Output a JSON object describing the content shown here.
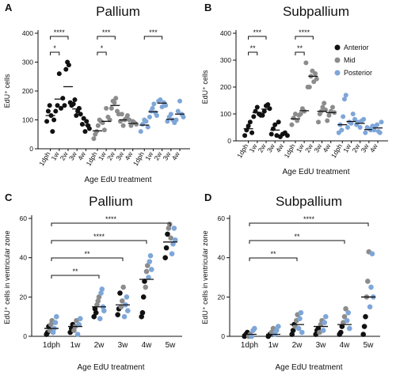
{
  "colors": {
    "anterior": "#111111",
    "mid": "#8c8c8c",
    "posterior": "#7ea6d8",
    "mean_line": "#111111"
  },
  "chart_data": [
    {
      "panel": "A",
      "type": "scatter",
      "title": "Pallium",
      "xlabel": "Age EdU treatment",
      "ylabel": "EdU⁺ cells",
      "ylim": [
        0,
        400
      ],
      "yticks": [
        "0",
        "100",
        "200",
        "300",
        "400"
      ],
      "grouping": "region",
      "groups": [
        {
          "series": "Anterior",
          "categories": [
            "1dph",
            "1w",
            "2w",
            "3w",
            "4w"
          ],
          "points": [
            [
              95,
              130,
              150,
              115,
              60,
              100
            ],
            [
              130,
              150,
              260,
              140,
              175
            ],
            [
              150,
              275,
              300,
              290,
              160,
              150
            ],
            [
              155,
              170,
              115,
              130,
              140,
              120
            ],
            [
              85,
              105,
              60,
              95,
              80,
              70
            ]
          ],
          "means": [
            115,
            172,
            215,
            138,
            82
          ]
        },
        {
          "series": "Mid",
          "categories": [
            "1dph",
            "1w",
            "2w",
            "3w",
            "4w"
          ],
          "points": [
            [
              35,
              50,
              60,
              80,
              100,
              95
            ],
            [
              90,
              65,
              140,
              110,
              100
            ],
            [
              140,
              165,
              160,
              175,
              130,
              120
            ],
            [
              95,
              120,
              80,
              100,
              105,
              115
            ],
            [
              100,
              80,
              95,
              90,
              85
            ]
          ],
          "means": [
            62,
            95,
            150,
            100,
            88
          ]
        },
        {
          "series": "Posterior",
          "categories": [
            "1dph",
            "1w",
            "2w",
            "3w",
            "4w"
          ],
          "points": [
            [
              60,
              85,
              100,
              95,
              75
            ],
            [
              110,
              130,
              140,
              155,
              125,
              115
            ],
            [
              165,
              170,
              145,
              160,
              150
            ],
            [
              95,
              110,
              120,
              100,
              90
            ],
            [
              100,
              130,
              165,
              120,
              110
            ]
          ],
          "means": [
            82,
            128,
            158,
            102,
            120
          ]
        }
      ],
      "significance": [
        {
          "from": "1dph",
          "to": "2w",
          "series": "Anterior",
          "label": "****"
        },
        {
          "from": "1dph",
          "to": "1w",
          "series": "Anterior",
          "label": "*"
        },
        {
          "from": "1dph",
          "to": "2w",
          "series": "Mid",
          "label": "***"
        },
        {
          "from": "1dph",
          "to": "1w",
          "series": "Mid",
          "label": "*"
        },
        {
          "from": "1dph",
          "to": "2w",
          "series": "Posterior",
          "label": "***"
        }
      ]
    },
    {
      "panel": "B",
      "type": "scatter",
      "title": "Subpallium",
      "xlabel": "Age EdU treatment",
      "ylabel": "EdU⁺ cells",
      "ylim": [
        0,
        400
      ],
      "yticks": [
        "0",
        "100",
        "200",
        "300",
        "400"
      ],
      "grouping": "region",
      "legend": [
        "Anterior",
        "Mid",
        "Posterior"
      ],
      "legend_position": "top-right",
      "groups": [
        {
          "series": "Anterior",
          "categories": [
            "1dph",
            "1w",
            "2w",
            "3w",
            "4w"
          ],
          "points": [
            [
              20,
              40,
              55,
              70,
              30
            ],
            [
              90,
              110,
              125,
              100,
              95
            ],
            [
              95,
              110,
              130,
              135,
              120
            ],
            [
              25,
              45,
              60,
              20,
              70
            ],
            [
              15,
              25,
              30,
              20
            ]
          ],
          "means": [
            45,
            105,
            118,
            40,
            22
          ]
        },
        {
          "series": "Mid",
          "categories": [
            "1dph",
            "1w",
            "2w",
            "3w",
            "4w"
          ],
          "points": [
            [
              60,
              85,
              100,
              75,
              95
            ],
            [
              100,
              120,
              110,
              290,
              200
            ],
            [
              200,
              240,
              260,
              220,
              250,
              230
            ],
            [
              70,
              100,
              110,
              125,
              140,
              115
            ],
            [
              75,
              95,
              110,
              125,
              105
            ]
          ],
          "means": [
            82,
            112,
            240,
            110,
            105
          ]
        },
        {
          "series": "Posterior",
          "categories": [
            "1dph",
            "1w",
            "2w",
            "3w",
            "4w"
          ],
          "points": [
            [
              30,
              60,
              40,
              90,
              155,
              170
            ],
            [
              50,
              70,
              65,
              100,
              80
            ],
            [
              60,
              70,
              50,
              75,
              80
            ],
            [
              30,
              50,
              45,
              40,
              55
            ],
            [
              40,
              55,
              60,
              35,
              30,
              70
            ]
          ],
          "means": [
            60,
            72,
            65,
            42,
            48
          ]
        }
      ],
      "significance": [
        {
          "from": "1dph",
          "to": "2w",
          "series": "Anterior",
          "label": "***"
        },
        {
          "from": "1dph",
          "to": "1w",
          "series": "Anterior",
          "label": "**"
        },
        {
          "from": "1dph",
          "to": "2w",
          "series": "Mid",
          "label": "****"
        },
        {
          "from": "1dph",
          "to": "1w",
          "series": "Mid",
          "label": "**"
        }
      ]
    },
    {
      "panel": "C",
      "type": "scatter",
      "title": "Pallium",
      "xlabel": "Age EdU treatment",
      "ylabel": "EdU⁺ cells in ventricular zone",
      "ylim": [
        0,
        60
      ],
      "yticks": [
        "0",
        "20",
        "40",
        "60"
      ],
      "grouping": "age",
      "categories": [
        "1dph",
        "1w",
        "2w",
        "3w",
        "4w",
        "5w"
      ],
      "points": [
        [
          [
            1,
            "a"
          ],
          [
            2,
            "a"
          ],
          [
            5,
            "a"
          ],
          [
            3,
            "m"
          ],
          [
            6,
            "m"
          ],
          [
            8,
            "m"
          ],
          [
            2,
            "p"
          ],
          [
            4,
            "p"
          ],
          [
            7,
            "p"
          ],
          [
            10,
            "p"
          ]
        ],
        [
          [
            2,
            "a"
          ],
          [
            4,
            "a"
          ],
          [
            6,
            "a"
          ],
          [
            3,
            "m"
          ],
          [
            5,
            "m"
          ],
          [
            8,
            "m"
          ],
          [
            1,
            "p"
          ],
          [
            6,
            "p"
          ],
          [
            9,
            "p"
          ]
        ],
        [
          [
            10,
            "a"
          ],
          [
            14,
            "a"
          ],
          [
            12,
            "a"
          ],
          [
            16,
            "m"
          ],
          [
            18,
            "m"
          ],
          [
            20,
            "m"
          ],
          [
            9,
            "p"
          ],
          [
            22,
            "p"
          ],
          [
            24,
            "p"
          ],
          [
            15,
            "p"
          ],
          [
            13,
            "p"
          ]
        ],
        [
          [
            11,
            "a"
          ],
          [
            14,
            "a"
          ],
          [
            22,
            "a"
          ],
          [
            15,
            "m"
          ],
          [
            18,
            "m"
          ],
          [
            25,
            "m"
          ],
          [
            10,
            "p"
          ],
          [
            16,
            "p"
          ],
          [
            20,
            "p"
          ],
          [
            13,
            "p"
          ]
        ],
        [
          [
            10,
            "a"
          ],
          [
            12,
            "a"
          ],
          [
            20,
            "a"
          ],
          [
            28,
            "a"
          ],
          [
            25,
            "m"
          ],
          [
            33,
            "m"
          ],
          [
            36,
            "m"
          ],
          [
            30,
            "p"
          ],
          [
            38,
            "p"
          ],
          [
            41,
            "p"
          ],
          [
            34,
            "p"
          ]
        ],
        [
          [
            40,
            "a"
          ],
          [
            45,
            "a"
          ],
          [
            52,
            "a"
          ],
          [
            55,
            "m"
          ],
          [
            57,
            "m"
          ],
          [
            50,
            "m"
          ],
          [
            42,
            "p"
          ],
          [
            47,
            "p"
          ],
          [
            55,
            "p"
          ],
          [
            49,
            "p"
          ]
        ]
      ],
      "means": [
        4,
        5,
        15,
        16,
        29,
        48
      ],
      "significance": [
        {
          "from": "1dph",
          "to": "5w",
          "label": "****"
        },
        {
          "from": "1dph",
          "to": "4w",
          "label": "****"
        },
        {
          "from": "1dph",
          "to": "3w",
          "label": "**"
        },
        {
          "from": "1dph",
          "to": "2w",
          "label": "**"
        }
      ]
    },
    {
      "panel": "D",
      "type": "scatter",
      "title": "Subpallium",
      "xlabel": "Age EdU treatment",
      "ylabel": "EdU⁺ cells in ventricular zone",
      "ylim": [
        0,
        60
      ],
      "yticks": [
        "0",
        "20",
        "40",
        "60"
      ],
      "grouping": "age",
      "categories": [
        "1dph",
        "1w",
        "2w",
        "3w",
        "4w",
        "5w"
      ],
      "points": [
        [
          [
            0,
            "a"
          ],
          [
            1,
            "a"
          ],
          [
            2,
            "a"
          ],
          [
            0,
            "m"
          ],
          [
            1,
            "m"
          ],
          [
            0,
            "p"
          ],
          [
            3,
            "p"
          ],
          [
            4,
            "p"
          ]
        ],
        [
          [
            0,
            "a"
          ],
          [
            1,
            "a"
          ],
          [
            2,
            "m"
          ],
          [
            4,
            "m"
          ],
          [
            1,
            "p"
          ],
          [
            3,
            "p"
          ],
          [
            5,
            "p"
          ]
        ],
        [
          [
            1,
            "a"
          ],
          [
            3,
            "a"
          ],
          [
            6,
            "a"
          ],
          [
            5,
            "m"
          ],
          [
            8,
            "m"
          ],
          [
            11,
            "m"
          ],
          [
            4,
            "p"
          ],
          [
            9,
            "p"
          ],
          [
            12,
            "p"
          ],
          [
            2,
            "p"
          ]
        ],
        [
          [
            1,
            "a"
          ],
          [
            3,
            "a"
          ],
          [
            4,
            "a"
          ],
          [
            2,
            "m"
          ],
          [
            6,
            "m"
          ],
          [
            8,
            "m"
          ],
          [
            3,
            "p"
          ],
          [
            7,
            "p"
          ],
          [
            10,
            "p"
          ]
        ],
        [
          [
            1,
            "a"
          ],
          [
            2,
            "a"
          ],
          [
            5,
            "a"
          ],
          [
            7,
            "m"
          ],
          [
            10,
            "m"
          ],
          [
            14,
            "m"
          ],
          [
            8,
            "p"
          ],
          [
            12,
            "p"
          ],
          [
            4,
            "p"
          ]
        ],
        [
          [
            1,
            "a"
          ],
          [
            5,
            "a"
          ],
          [
            10,
            "a"
          ],
          [
            20,
            "m"
          ],
          [
            28,
            "m"
          ],
          [
            43,
            "m"
          ],
          [
            15,
            "p"
          ],
          [
            25,
            "p"
          ],
          [
            42,
            "p"
          ],
          [
            20,
            "p"
          ]
        ]
      ],
      "means": [
        1,
        1,
        6,
        5,
        6,
        20
      ],
      "significance": [
        {
          "from": "1dph",
          "to": "5w",
          "label": "****"
        },
        {
          "from": "1dph",
          "to": "4w",
          "label": "**"
        },
        {
          "from": "1dph",
          "to": "2w",
          "label": "**"
        }
      ]
    }
  ]
}
